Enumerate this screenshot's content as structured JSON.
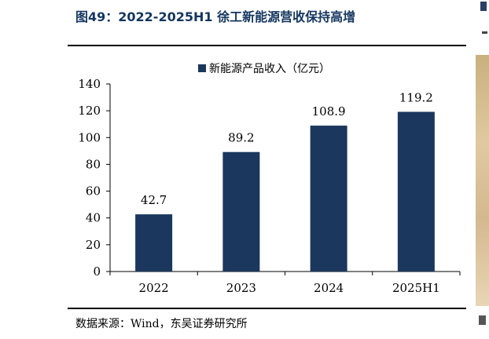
{
  "figure_title": "图49：2022-2025H1 徐工新能源营收保持高增",
  "source_note": "数据来源：Wind，东吴证券研究所",
  "colors": {
    "bar": "#1b375e",
    "title": "#14365f"
  },
  "chart_data": {
    "type": "bar",
    "categories": [
      "2022",
      "2023",
      "2024",
      "2025H1"
    ],
    "series": [
      {
        "name": "新能源产品收入（亿元）",
        "values": [
          42.7,
          89.2,
          108.9,
          119.2
        ]
      }
    ],
    "data_labels": [
      "42.7",
      "89.2",
      "108.9",
      "119.2"
    ],
    "ylim": [
      0,
      140
    ],
    "yticks": [
      0,
      20,
      40,
      60,
      80,
      100,
      120,
      140
    ],
    "legend_position": "top-center",
    "grid": false
  }
}
